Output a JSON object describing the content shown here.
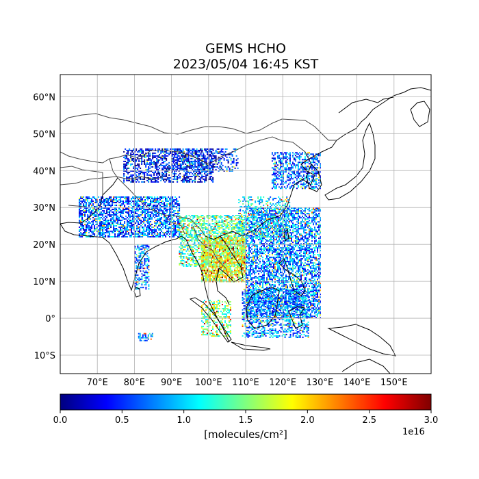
{
  "title_line1": "GEMS HCHO",
  "title_line2": "2023/05/04 16:45 KST",
  "map": {
    "lon_range": [
      60,
      160
    ],
    "lat_range": [
      -15,
      66
    ],
    "lon_ticks": [
      70,
      80,
      90,
      100,
      110,
      120,
      130,
      140,
      150
    ],
    "lon_tick_labels": [
      "70°E",
      "80°E",
      "90°E",
      "100°E",
      "110°E",
      "120°E",
      "130°E",
      "140°E",
      "150°E"
    ],
    "lat_ticks": [
      60,
      50,
      40,
      30,
      20,
      10,
      0,
      -10
    ],
    "lat_tick_labels": [
      "60°N",
      "50°N",
      "40°N",
      "30°N",
      "20°N",
      "10°N",
      "0°",
      "10°S"
    ],
    "grid": true,
    "colormap": "jet"
  },
  "colorbar": {
    "min": 0.0,
    "max": 3.0,
    "ticks": [
      0.0,
      0.5,
      1.0,
      1.5,
      2.0,
      2.5,
      3.0
    ],
    "tick_labels": [
      "0.0",
      "0.5",
      "1.0",
      "1.5",
      "2.0",
      "2.5",
      "3.0"
    ],
    "unit_label": "[molecules/cm²]",
    "exponent_label": "1e16",
    "colors": [
      "#00007f",
      "#0000ff",
      "#007fff",
      "#00ffff",
      "#7fff7f",
      "#ffff00",
      "#ff7f00",
      "#ff0000",
      "#7f0000"
    ]
  }
}
